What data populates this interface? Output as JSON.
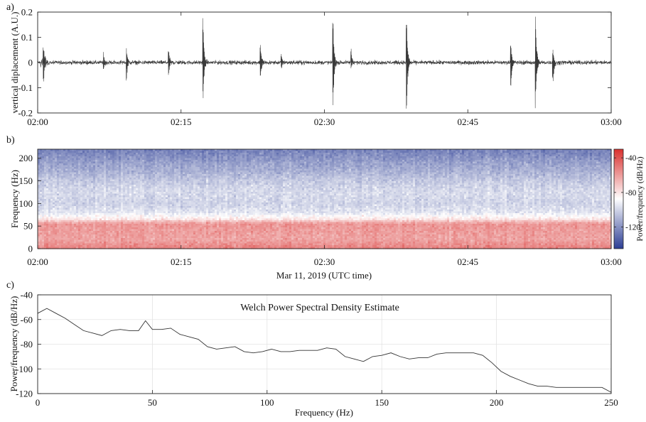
{
  "chart_data": [
    {
      "panel_label": "a)",
      "type": "line",
      "ylabel": "vertical diplacement (A.U.)",
      "xlim": [
        0,
        60
      ],
      "ylim": [
        -0.2,
        0.2
      ],
      "xticks": [
        {
          "v": 0,
          "label": "02:00"
        },
        {
          "v": 15,
          "label": "02:15"
        },
        {
          "v": 30,
          "label": "02:30"
        },
        {
          "v": 45,
          "label": "02:45"
        },
        {
          "v": 60,
          "label": "03:00"
        }
      ],
      "yticks": [
        {
          "v": 0.2,
          "label": "0.2"
        },
        {
          "v": 0.1,
          "label": "0.1"
        },
        {
          "v": 0,
          "label": "0"
        },
        {
          "v": -0.1,
          "label": "-0.1"
        },
        {
          "v": -0.2,
          "label": "-0.2"
        }
      ],
      "line_color": "#3a3a3a",
      "noise_amplitude": 0.012,
      "events": [
        {
          "t": 0.6,
          "up": 0.08,
          "down": -0.09
        },
        {
          "t": 6.9,
          "up": 0.035,
          "down": -0.04
        },
        {
          "t": 9.3,
          "up": 0.07,
          "down": -0.07
        },
        {
          "t": 13.7,
          "up": 0.06,
          "down": -0.05
        },
        {
          "t": 17.3,
          "up": 0.18,
          "down": -0.17
        },
        {
          "t": 23.3,
          "up": 0.09,
          "down": -0.09
        },
        {
          "t": 25.5,
          "up": 0.03,
          "down": -0.03
        },
        {
          "t": 30.9,
          "up": 0.2,
          "down": -0.2
        },
        {
          "t": 32.8,
          "up": 0.06,
          "down": -0.03
        },
        {
          "t": 38.6,
          "up": 0.2,
          "down": -0.2
        },
        {
          "t": 49.5,
          "up": 0.09,
          "down": -0.12
        },
        {
          "t": 52.1,
          "up": 0.2,
          "down": -0.2
        },
        {
          "t": 53.9,
          "up": 0.06,
          "down": -0.1
        }
      ]
    },
    {
      "panel_label": "b)",
      "type": "heatmap",
      "ylabel": "Frequency (Hz)",
      "xlabel": "Mar 11, 2019 (UTC time)",
      "xlim": [
        0,
        60
      ],
      "ylim": [
        0,
        220
      ],
      "xticks": [
        {
          "v": 0,
          "label": "02:00"
        },
        {
          "v": 15,
          "label": "02:15"
        },
        {
          "v": 30,
          "label": "02:30"
        },
        {
          "v": 45,
          "label": "02:45"
        },
        {
          "v": 60,
          "label": "03:00"
        }
      ],
      "yticks": [
        {
          "v": 0,
          "label": "0"
        },
        {
          "v": 50,
          "label": "50"
        },
        {
          "v": 100,
          "label": "100"
        },
        {
          "v": 150,
          "label": "150"
        },
        {
          "v": 200,
          "label": "200"
        }
      ],
      "colorbar": {
        "label": "Power/frequency (dB/Hz)",
        "range": [
          -145,
          -30
        ],
        "ticks": [
          {
            "v": -40,
            "label": "-40"
          },
          {
            "v": -80,
            "label": "-80"
          },
          {
            "v": -120,
            "label": "-120"
          }
        ],
        "colors": [
          "#2b3d94",
          "#ffffff",
          "#d9312f"
        ]
      },
      "freq_profile_db": [
        {
          "f": 0,
          "db": -52
        },
        {
          "f": 20,
          "db": -62
        },
        {
          "f": 40,
          "db": -60
        },
        {
          "f": 55,
          "db": -58
        },
        {
          "f": 65,
          "db": -80
        },
        {
          "f": 80,
          "db": -95
        },
        {
          "f": 100,
          "db": -100
        },
        {
          "f": 125,
          "db": -98
        },
        {
          "f": 150,
          "db": -103
        },
        {
          "f": 170,
          "db": -110
        },
        {
          "f": 190,
          "db": -115
        },
        {
          "f": 220,
          "db": -125
        }
      ]
    },
    {
      "panel_label": "c)",
      "type": "line",
      "title": "Welch Power Spectral Density Estimate",
      "xlabel": "Frequency (Hz)",
      "ylabel": "Power/frequency (dB/Hz)",
      "xlim": [
        0,
        250
      ],
      "ylim": [
        -120,
        -40
      ],
      "grid": true,
      "xticks": [
        {
          "v": 0,
          "label": "0"
        },
        {
          "v": 50,
          "label": "50"
        },
        {
          "v": 100,
          "label": "100"
        },
        {
          "v": 150,
          "label": "150"
        },
        {
          "v": 200,
          "label": "200"
        },
        {
          "v": 250,
          "label": "250"
        }
      ],
      "yticks": [
        {
          "v": -40,
          "label": "-40"
        },
        {
          "v": -60,
          "label": "-60"
        },
        {
          "v": -80,
          "label": "-80"
        },
        {
          "v": -100,
          "label": "-100"
        },
        {
          "v": -120,
          "label": "-120"
        }
      ],
      "line_color": "#333333",
      "x": [
        0,
        4,
        8,
        12,
        16,
        20,
        24,
        28,
        32,
        36,
        40,
        44,
        47,
        50,
        54,
        58,
        62,
        66,
        70,
        74,
        78,
        82,
        86,
        90,
        94,
        98,
        102,
        106,
        110,
        114,
        118,
        122,
        126,
        130,
        134,
        138,
        142,
        146,
        150,
        154,
        158,
        162,
        166,
        170,
        174,
        178,
        182,
        186,
        190,
        194,
        198,
        202,
        206,
        210,
        214,
        218,
        222,
        226,
        230,
        234,
        238,
        242,
        246,
        250
      ],
      "y": [
        -55,
        -51,
        -55,
        -59,
        -64,
        -69,
        -71,
        -73,
        -69,
        -68,
        -69,
        -69,
        -61,
        -68,
        -68,
        -67,
        -72,
        -74,
        -76,
        -82,
        -84,
        -83,
        -82,
        -86,
        -87,
        -86,
        -84,
        -86,
        -86,
        -85,
        -85,
        -85,
        -83,
        -84,
        -90,
        -92,
        -94,
        -90,
        -89,
        -87,
        -90,
        -92,
        -91,
        -91,
        -88,
        -87,
        -87,
        -87,
        -87,
        -89,
        -95,
        -102,
        -106,
        -109,
        -112,
        -114,
        -114,
        -115,
        -115,
        -115,
        -115,
        -115,
        -115,
        -119
      ]
    }
  ]
}
